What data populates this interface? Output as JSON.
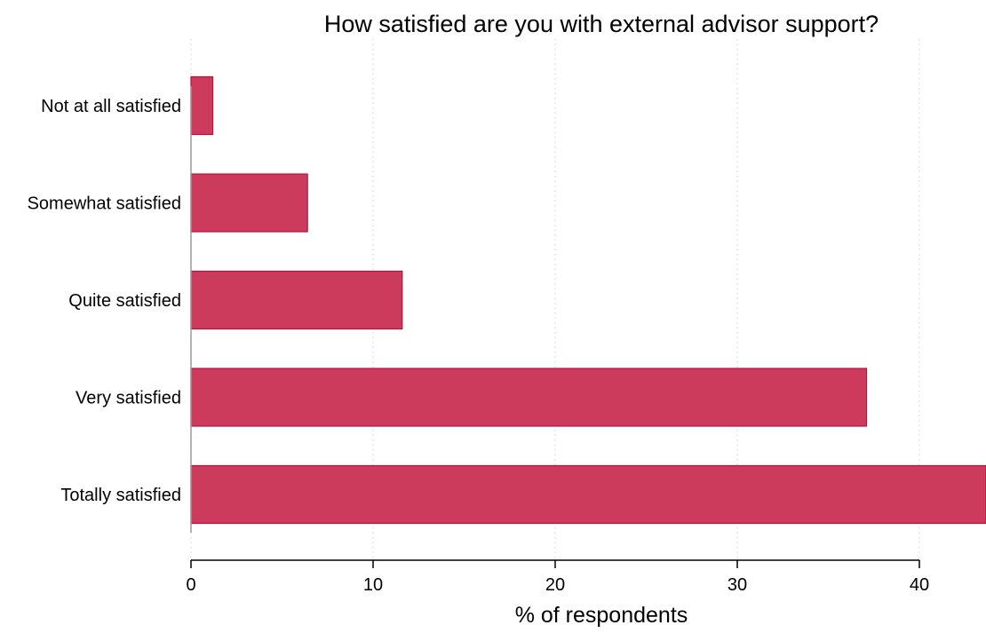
{
  "chart_data": {
    "type": "bar",
    "orientation": "horizontal",
    "title": "How satisfied are you with external advisor support?",
    "xlabel": "% of respondents",
    "ylabel": "",
    "categories": [
      "Not at all satisfied",
      "Somewhat satisfied",
      "Quite satisfied",
      "Very satisfied",
      "Totally satisfied"
    ],
    "values": [
      1.2,
      6.4,
      11.6,
      37.1,
      44.2
    ],
    "xlim": [
      0,
      43
    ],
    "xticks": [
      0,
      10,
      20,
      30,
      40
    ],
    "grid": "vertical dotted",
    "legend": "none",
    "bar_color": "#cc3a5c",
    "bar_edge_color": "#b8123e"
  }
}
